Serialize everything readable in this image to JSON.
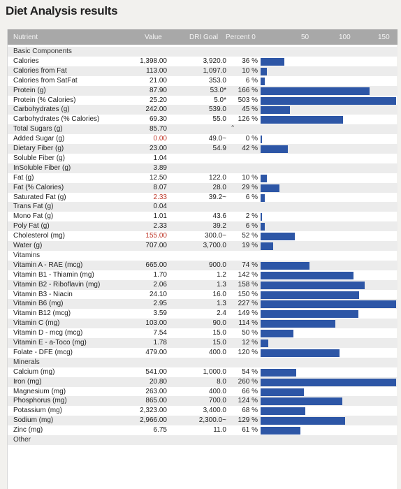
{
  "title": "Diet Analysis results",
  "colors": {
    "bar": "#2d56a6",
    "header": "#a8a8a8",
    "alt_row": "#ececec",
    "warning": "#c0392b"
  },
  "header": {
    "nutrient": "Nutrient",
    "value": "Value",
    "dri_goal": "DRI Goal",
    "percent": "Percent 0",
    "scale_50": "50",
    "scale_100": "100",
    "scale_150": "150"
  },
  "rows": [
    {
      "name": "Basic Components",
      "section": true
    },
    {
      "name": "Calories",
      "value": "1,398.00",
      "dri": "3,920.0",
      "pct": "36 %",
      "bar": 36
    },
    {
      "name": "Calories from Fat",
      "value": "113.00",
      "dri": "1,097.0",
      "pct": "10 %",
      "bar": 10
    },
    {
      "name": "Calories from SatFat",
      "value": "21.00",
      "dri": "353.0",
      "pct": "6 %",
      "bar": 6
    },
    {
      "name": "Protein (g)",
      "value": "87.90",
      "dri": "53.0*",
      "pct": "166 %",
      "bar": 166
    },
    {
      "name": "Protein (% Calories)",
      "value": "25.20",
      "dri": "5.0*",
      "pct": "503 %",
      "bar": 503
    },
    {
      "name": "Carbohydrates (g)",
      "value": "242.00",
      "dri": "539.0",
      "pct": "45 %",
      "bar": 45
    },
    {
      "name": "Carbohydrates (% Calories)",
      "value": "69.30",
      "dri": "55.0",
      "pct": "126 %",
      "bar": 126
    },
    {
      "name": "Total Sugars (g)",
      "value": "85.70",
      "mark": "^"
    },
    {
      "name": "Added Sugar (g)",
      "value": "0.00",
      "dri": "49.0~",
      "pct": "0 %",
      "bar": 0.8,
      "red": true
    },
    {
      "name": "Dietary Fiber (g)",
      "value": "23.00",
      "dri": "54.9",
      "pct": "42 %",
      "bar": 42
    },
    {
      "name": "Soluble Fiber (g)",
      "value": "1.04"
    },
    {
      "name": "InSoluble Fiber (g)",
      "value": "3.89"
    },
    {
      "name": "Fat (g)",
      "value": "12.50",
      "dri": "122.0",
      "pct": "10 %",
      "bar": 10
    },
    {
      "name": "Fat (% Calories)",
      "value": "8.07",
      "dri": "28.0",
      "pct": "29 %",
      "bar": 29
    },
    {
      "name": "Saturated Fat (g)",
      "value": "2.33",
      "dri": "39.2~",
      "pct": "6 %",
      "bar": 6,
      "red": true
    },
    {
      "name": "Trans Fat (g)",
      "value": "0.04"
    },
    {
      "name": "Mono Fat (g)",
      "value": "1.01",
      "dri": "43.6",
      "pct": "2 %",
      "bar": 2
    },
    {
      "name": "Poly Fat (g)",
      "value": "2.33",
      "dri": "39.2",
      "pct": "6 %",
      "bar": 6
    },
    {
      "name": "Cholesterol (mg)",
      "value": "155.00",
      "dri": "300.0~",
      "pct": "52 %",
      "bar": 52,
      "red": true
    },
    {
      "name": "Water (g)",
      "value": "707.00",
      "dri": "3,700.0",
      "pct": "19 %",
      "bar": 19
    },
    {
      "name": "Vitamins",
      "section": true
    },
    {
      "name": "Vitamin A - RAE (mcg)",
      "value": "665.00",
      "dri": "900.0",
      "pct": "74 %",
      "bar": 74
    },
    {
      "name": "Vitamin B1 - Thiamin (mg)",
      "value": "1.70",
      "dri": "1.2",
      "pct": "142 %",
      "bar": 142
    },
    {
      "name": "Vitamin B2 - Riboflavin (mg)",
      "value": "2.06",
      "dri": "1.3",
      "pct": "158 %",
      "bar": 158
    },
    {
      "name": "Vitamin B3 - Niacin",
      "value": "24.10",
      "dri": "16.0",
      "pct": "150 %",
      "bar": 150
    },
    {
      "name": "Vitamin B6 (mg)",
      "value": "2.95",
      "dri": "1.3",
      "pct": "227 %",
      "bar": 227
    },
    {
      "name": "Vitamin B12 (mcg)",
      "value": "3.59",
      "dri": "2.4",
      "pct": "149 %",
      "bar": 149
    },
    {
      "name": "Vitamin C (mg)",
      "value": "103.00",
      "dri": "90.0",
      "pct": "114 %",
      "bar": 114
    },
    {
      "name": "Vitamin D - mcg (mcg)",
      "value": "7.54",
      "dri": "15.0",
      "pct": "50 %",
      "bar": 50
    },
    {
      "name": "Vitamin E - a-Toco (mg)",
      "value": "1.78",
      "dri": "15.0",
      "pct": "12 %",
      "bar": 12
    },
    {
      "name": "Folate - DFE (mcg)",
      "value": "479.00",
      "dri": "400.0",
      "pct": "120 %",
      "bar": 120
    },
    {
      "name": "Minerals",
      "section": true
    },
    {
      "name": "Calcium (mg)",
      "value": "541.00",
      "dri": "1,000.0",
      "pct": "54 %",
      "bar": 54
    },
    {
      "name": "Iron (mg)",
      "value": "20.80",
      "dri": "8.0",
      "pct": "260 %",
      "bar": 260
    },
    {
      "name": "Magnesium (mg)",
      "value": "263.00",
      "dri": "400.0",
      "pct": "66 %",
      "bar": 66
    },
    {
      "name": "Phosphorus (mg)",
      "value": "865.00",
      "dri": "700.0",
      "pct": "124 %",
      "bar": 124
    },
    {
      "name": "Potassium (mg)",
      "value": "2,323.00",
      "dri": "3,400.0",
      "pct": "68 %",
      "bar": 68
    },
    {
      "name": "Sodium (mg)",
      "value": "2,966.00",
      "dri": "2,300.0~",
      "pct": "129 %",
      "bar": 129
    },
    {
      "name": "Zinc (mg)",
      "value": "6.75",
      "dri": "11.0",
      "pct": "61 %",
      "bar": 61
    },
    {
      "name": "Other",
      "section": true
    }
  ]
}
